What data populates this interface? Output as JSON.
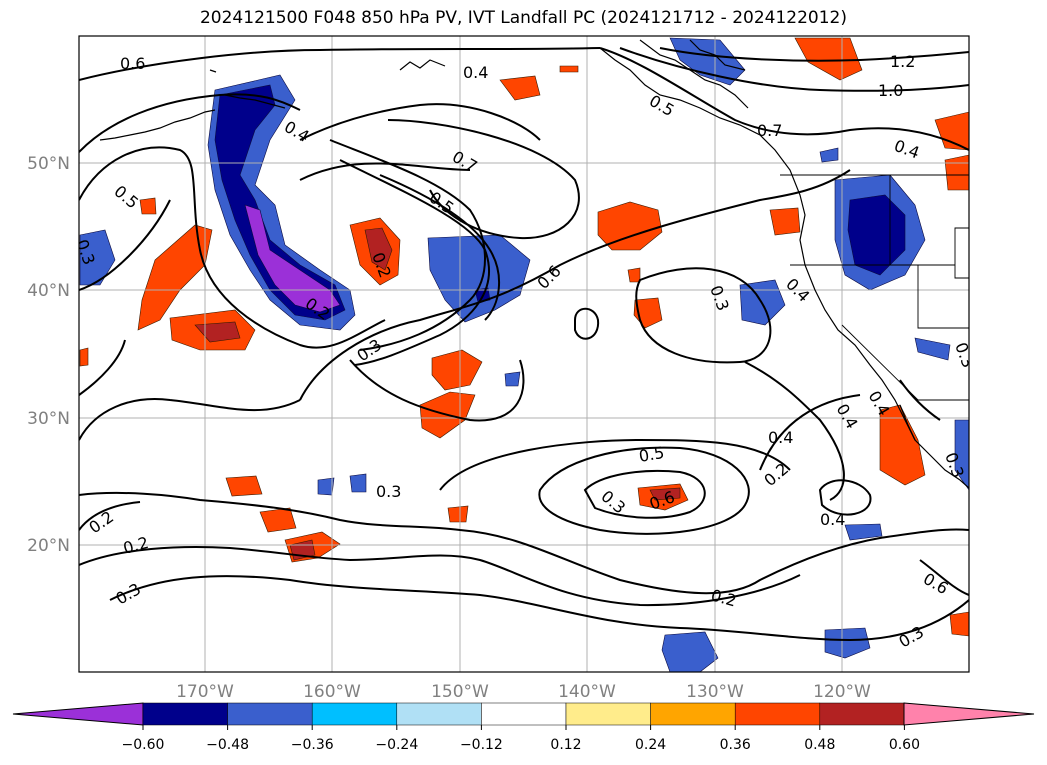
{
  "title": "2024121500 F048 850 hPa PV, IVT Landfall PC (2024121712 - 2024122012)",
  "lon_labels": [
    "170°W",
    "160°W",
    "150°W",
    "140°W",
    "130°W",
    "120°W"
  ],
  "lat_labels": [
    "50°N",
    "40°N",
    "30°N",
    "20°N"
  ],
  "contour_labels": [
    "0.6",
    "0.4",
    "1.2",
    "1.0",
    "0.7",
    "0.5",
    "0.4",
    "0.5",
    "0.3",
    "0.4",
    "0.7",
    "0.5",
    "0.2",
    "0.6",
    "0.2",
    "0.3",
    "0.3",
    "0.4",
    "0.3",
    "0.4",
    "0.4",
    "0.3",
    "0.4",
    "0.5",
    "0.6",
    "0.3",
    "0.2",
    "0.4",
    "0.3",
    "0.2",
    "0.2",
    "0.3",
    "0.2",
    "0.6",
    "0.3"
  ],
  "colorbar": {
    "colors": [
      "#9b30d8",
      "#00008b",
      "#3a5fcd",
      "#00bfff",
      "#b0e0f5",
      "#ffffff",
      "#ffec8b",
      "#ffa500",
      "#ff4500",
      "#b22222",
      "#ff82ab"
    ],
    "ticks": [
      "−0.60",
      "−0.48",
      "−0.36",
      "−0.24",
      "−0.12",
      "0.12",
      "0.24",
      "0.36",
      "0.48",
      "0.60"
    ]
  }
}
